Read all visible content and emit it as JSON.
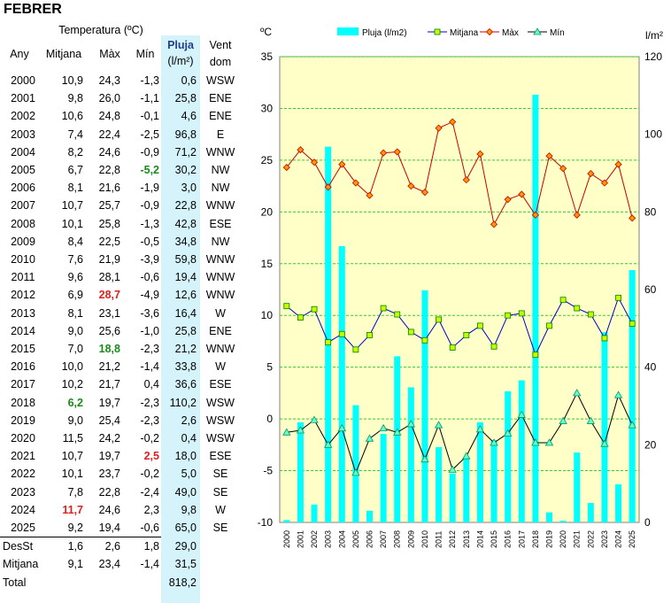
{
  "title": "FEBRER",
  "table": {
    "group_header": "Temperatura (ºC)",
    "headers": {
      "year": "Any",
      "mean": "Mitjana",
      "max": "Màx",
      "min": "Mín",
      "rain": "Pluja",
      "rain_unit": "(l/m²)",
      "wind": "Vent",
      "wind2": "dom"
    },
    "rows": [
      {
        "year": "2000",
        "mean": "10,9",
        "max": "24,3",
        "min": "-1,3",
        "rain": "0,6",
        "wind": "WSW"
      },
      {
        "year": "2001",
        "mean": "9,8",
        "max": "26,0",
        "min": "-1,1",
        "rain": "25,8",
        "wind": "ENE"
      },
      {
        "year": "2002",
        "mean": "10,6",
        "max": "24,8",
        "min": "-0,1",
        "rain": "4,6",
        "wind": "ENE"
      },
      {
        "year": "2003",
        "mean": "7,4",
        "max": "22,4",
        "min": "-2,5",
        "rain": "96,8",
        "wind": "E"
      },
      {
        "year": "2004",
        "mean": "8,2",
        "max": "24,6",
        "min": "-0,9",
        "rain": "71,2",
        "wind": "WNW"
      },
      {
        "year": "2005",
        "mean": "6,7",
        "max": "22,8",
        "min": "-5,2",
        "rain": "30,2",
        "wind": "NW"
      },
      {
        "year": "2006",
        "mean": "8,1",
        "max": "21,6",
        "min": "-1,9",
        "rain": "3,0",
        "wind": "NW"
      },
      {
        "year": "2007",
        "mean": "10,7",
        "max": "25,7",
        "min": "-0,9",
        "rain": "22,8",
        "wind": "WNW"
      },
      {
        "year": "2008",
        "mean": "10,1",
        "max": "25,8",
        "min": "-1,3",
        "rain": "42,8",
        "wind": "ESE"
      },
      {
        "year": "2009",
        "mean": "8,4",
        "max": "22,5",
        "min": "-0,5",
        "rain": "34,8",
        "wind": "NW"
      },
      {
        "year": "2010",
        "mean": "7,6",
        "max": "21,9",
        "min": "-3,9",
        "rain": "59,8",
        "wind": "WNW"
      },
      {
        "year": "2011",
        "mean": "9,6",
        "max": "28,1",
        "min": "-0,6",
        "rain": "19,4",
        "wind": "WNW"
      },
      {
        "year": "2012",
        "mean": "6,9",
        "max": "28,7",
        "min": "-4,9",
        "rain": "12,6",
        "wind": "WNW"
      },
      {
        "year": "2013",
        "mean": "8,1",
        "max": "23,1",
        "min": "-3,6",
        "rain": "16,4",
        "wind": "W"
      },
      {
        "year": "2014",
        "mean": "9,0",
        "max": "25,6",
        "min": "-1,0",
        "rain": "25,8",
        "wind": "ENE"
      },
      {
        "year": "2015",
        "mean": "7,0",
        "max": "18,8",
        "min": "-2,3",
        "rain": "21,2",
        "wind": "WNW"
      },
      {
        "year": "2016",
        "mean": "10,0",
        "max": "21,2",
        "min": "-1,4",
        "rain": "33,8",
        "wind": "W"
      },
      {
        "year": "2017",
        "mean": "10,2",
        "max": "21,7",
        "min": "0,4",
        "rain": "36,6",
        "wind": "ESE"
      },
      {
        "year": "2018",
        "mean": "6,2",
        "max": "19,7",
        "min": "-2,3",
        "rain": "110,2",
        "wind": "WSW"
      },
      {
        "year": "2019",
        "mean": "9,0",
        "max": "25,4",
        "min": "-2,3",
        "rain": "2,6",
        "wind": "WSW"
      },
      {
        "year": "2020",
        "mean": "11,5",
        "max": "24,2",
        "min": "-0,2",
        "rain": "0,4",
        "wind": "WSW"
      },
      {
        "year": "2021",
        "mean": "10,7",
        "max": "19,7",
        "min": "2,5",
        "rain": "18,0",
        "wind": "ESE"
      },
      {
        "year": "2022",
        "mean": "10,1",
        "max": "23,7",
        "min": "-0,2",
        "rain": "5,0",
        "wind": "SE"
      },
      {
        "year": "2023",
        "mean": "7,8",
        "max": "22,8",
        "min": "-2,4",
        "rain": "49,0",
        "wind": "SE"
      },
      {
        "year": "2024",
        "mean": "11,7",
        "max": "24,6",
        "min": "2,3",
        "rain": "9,8",
        "wind": "W"
      },
      {
        "year": "2025",
        "mean": "9,2",
        "max": "19,4",
        "min": "-0,6",
        "rain": "65,0",
        "wind": "SE"
      }
    ],
    "summary": [
      {
        "label": "DesSt",
        "mean": "1,6",
        "max": "2,6",
        "min": "1,8",
        "rain": "29,0"
      },
      {
        "label": "Mitjana",
        "mean": "9,1",
        "max": "23,4",
        "min": "-1,4",
        "rain": "31,5"
      },
      {
        "label": "Total",
        "mean": "",
        "max": "",
        "min": "",
        "rain": "818,2"
      }
    ],
    "highlights": [
      {
        "row": 24,
        "col": "mean",
        "color": "#e02020"
      },
      {
        "row": 18,
        "col": "mean",
        "color": "#1a8a1a"
      },
      {
        "row": 12,
        "col": "max",
        "color": "#e02020"
      },
      {
        "row": 15,
        "col": "max",
        "color": "#1a8a1a"
      },
      {
        "row": 21,
        "col": "min",
        "color": "#e02020"
      },
      {
        "row": 5,
        "col": "min",
        "color": "#1a8a1a"
      }
    ]
  },
  "colors": {
    "rain_band": "#d5f3fb",
    "rain_header_text": "#1f3f8f",
    "plot_bg": "#ffffc8",
    "bar": "#00ffff",
    "grid": "#33cc33",
    "mean_line": "#0000cc",
    "mean_marker": "#c8ff00",
    "max_line": "#cc0000",
    "max_marker": "#ff9900",
    "min_line": "#000000",
    "min_marker": "#66ffcc"
  },
  "chart_data": {
    "type": "bar",
    "xlabel": "",
    "ylabel": "ºC",
    "y2label": "l/m²",
    "ylim": [
      -10,
      35
    ],
    "yticks": [
      -10,
      -5,
      0,
      5,
      10,
      15,
      20,
      25,
      30,
      35
    ],
    "y2lim": [
      0,
      120
    ],
    "y2ticks": [
      0,
      20,
      40,
      60,
      80,
      100,
      120
    ],
    "grid": true,
    "legend": "top",
    "categories": [
      "2000",
      "2001",
      "2002",
      "2003",
      "2004",
      "2005",
      "2006",
      "2007",
      "2008",
      "2009",
      "2010",
      "2011",
      "2012",
      "2013",
      "2014",
      "2015",
      "2016",
      "2017",
      "2018",
      "2019",
      "2020",
      "2021",
      "2022",
      "2023",
      "2024",
      "2025"
    ],
    "series": [
      {
        "name": "Pluja (l/m2)",
        "kind": "bar",
        "axis": "right",
        "values": [
          0.6,
          25.8,
          4.6,
          96.8,
          71.2,
          30.2,
          3.0,
          22.8,
          42.8,
          34.8,
          59.8,
          19.4,
          12.6,
          16.4,
          25.8,
          21.2,
          33.8,
          36.6,
          110.2,
          2.6,
          0.4,
          18.0,
          5.0,
          49.0,
          9.8,
          65.0
        ]
      },
      {
        "name": "Mitjana",
        "kind": "line",
        "axis": "left",
        "values": [
          10.9,
          9.8,
          10.6,
          7.4,
          8.2,
          6.7,
          8.1,
          10.7,
          10.1,
          8.4,
          7.6,
          9.6,
          6.9,
          8.1,
          9.0,
          7.0,
          10.0,
          10.2,
          6.2,
          9.0,
          11.5,
          10.7,
          10.1,
          7.8,
          11.7,
          9.2
        ]
      },
      {
        "name": "Màx",
        "kind": "line",
        "axis": "left",
        "values": [
          24.3,
          26.0,
          24.8,
          22.4,
          24.6,
          22.8,
          21.6,
          25.7,
          25.8,
          22.5,
          21.9,
          28.1,
          28.7,
          23.1,
          25.6,
          18.8,
          21.2,
          21.7,
          19.7,
          25.4,
          24.2,
          19.7,
          23.7,
          22.8,
          24.6,
          19.4
        ]
      },
      {
        "name": "Mín",
        "kind": "line",
        "axis": "left",
        "values": [
          -1.3,
          -1.1,
          -0.1,
          -2.5,
          -0.9,
          -5.2,
          -1.9,
          -0.9,
          -1.3,
          -0.5,
          -3.9,
          -0.6,
          -4.9,
          -3.6,
          -1.0,
          -2.3,
          -1.4,
          0.4,
          -2.3,
          -2.3,
          -0.2,
          2.5,
          -0.2,
          -2.4,
          2.3,
          -0.6
        ]
      }
    ]
  }
}
